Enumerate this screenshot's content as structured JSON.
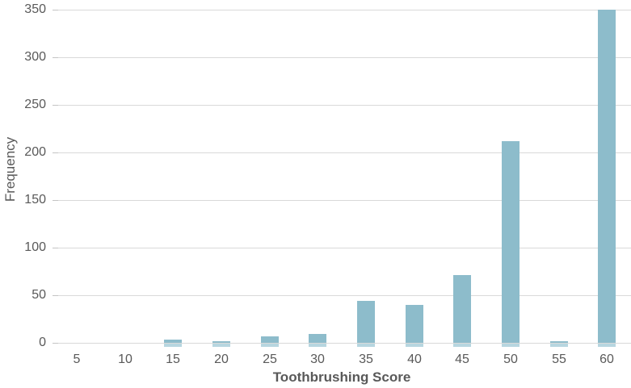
{
  "chart_data": {
    "type": "bar",
    "title": "",
    "xlabel": "Toothbrushing Score",
    "ylabel": "Frequency",
    "categories": [
      "5",
      "10",
      "15",
      "20",
      "25",
      "30",
      "35",
      "40",
      "45",
      "50",
      "55",
      "60"
    ],
    "values": [
      0,
      0,
      3,
      2,
      7,
      9,
      44,
      40,
      71,
      212,
      2,
      350
    ],
    "ylim": [
      0,
      350
    ],
    "yticks": [
      0,
      50,
      100,
      150,
      200,
      250,
      300,
      350
    ],
    "grid": "horizontal",
    "legend_position": "none",
    "colors": {
      "bar_fill": "#8dbccb",
      "bar_base_glow": "#b7d6e0",
      "gridline": "#d9d9d9",
      "tick_mark": "#c4c4c4",
      "text": "#595959",
      "background": "#ffffff"
    }
  }
}
